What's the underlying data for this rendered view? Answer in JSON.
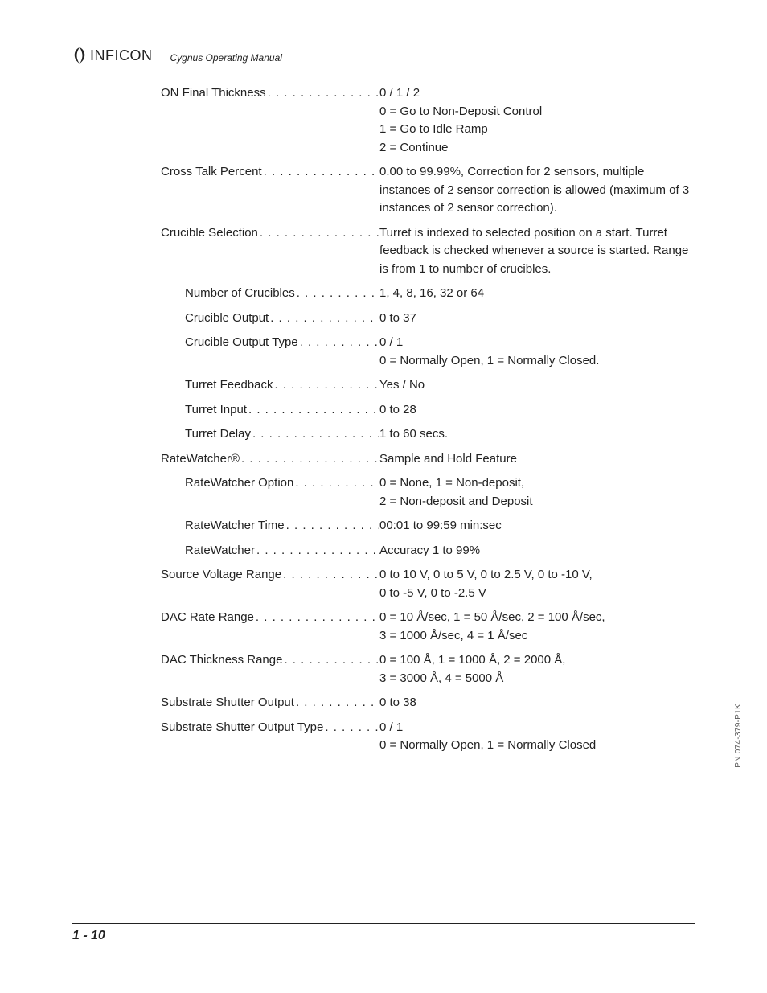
{
  "header": {
    "brand": "INFICON",
    "manual_title": "Cygnus Operating Manual"
  },
  "side_note": "IPN 074-379-P1K",
  "page_number": "1 - 10",
  "entries": [
    {
      "indent": 0,
      "label": "ON Final Thickness",
      "value_lines": [
        "0 / 1 / 2",
        "0 = Go to Non-Deposit Control",
        "1 = Go to Idle Ramp",
        "2 = Continue"
      ]
    },
    {
      "indent": 0,
      "label": "Cross Talk Percent",
      "value_lines": [
        "0.00 to 99.99%, Correction for 2 sensors, multiple instances of 2 sensor correction is allowed (maximum of 3 instances of 2 sensor correction)."
      ]
    },
    {
      "indent": 0,
      "label": "Crucible Selection",
      "value_lines": [
        "Turret is indexed to selected position on a start. Turret feedback is checked whenever a source is started. Range is from 1 to number of crucibles."
      ]
    },
    {
      "indent": 1,
      "label": "Number of Crucibles",
      "value_lines": [
        "1, 4, 8, 16, 32 or 64"
      ]
    },
    {
      "indent": 1,
      "label": "Crucible Output",
      "value_lines": [
        "0 to 37"
      ]
    },
    {
      "indent": 1,
      "label": "Crucible Output Type",
      "value_lines": [
        "0 / 1",
        "0 = Normally Open, 1 = Normally Closed."
      ]
    },
    {
      "indent": 1,
      "label": "Turret Feedback",
      "value_lines": [
        "Yes / No"
      ]
    },
    {
      "indent": 1,
      "label": "Turret Input",
      "value_lines": [
        "0 to 28"
      ]
    },
    {
      "indent": 1,
      "label": "Turret Delay",
      "value_lines": [
        "1 to 60 secs."
      ]
    },
    {
      "indent": 0,
      "label": "RateWatcher®",
      "value_lines": [
        "Sample and Hold Feature"
      ]
    },
    {
      "indent": 1,
      "label": "RateWatcher Option",
      "value_lines": [
        "0 = None, 1 = Non-deposit,",
        "2 = Non-deposit and Deposit"
      ]
    },
    {
      "indent": 1,
      "label": "RateWatcher Time",
      "value_lines": [
        "00:01 to 99:59 min:sec"
      ]
    },
    {
      "indent": 1,
      "label": "RateWatcher",
      "value_lines": [
        "Accuracy 1 to 99%"
      ]
    },
    {
      "indent": 0,
      "label": "Source Voltage Range",
      "value_lines": [
        "0 to 10 V, 0 to 5 V, 0 to 2.5 V, 0 to -10 V,",
        "0 to -5 V, 0 to -2.5 V"
      ]
    },
    {
      "indent": 0,
      "label": "DAC Rate Range",
      "value_lines": [
        "0 = 10 Å/sec, 1 = 50 Å/sec, 2 = 100 Å/sec,",
        "3 = 1000 Å/sec, 4 = 1 Å/sec"
      ]
    },
    {
      "indent": 0,
      "label": "DAC Thickness Range",
      "value_lines": [
        "0 = 100 Å, 1 = 1000 Å, 2 = 2000 Å,",
        "3 = 3000 Å, 4 = 5000 Å"
      ]
    },
    {
      "indent": 0,
      "label": "Substrate Shutter Output",
      "value_lines": [
        "0 to 38"
      ]
    },
    {
      "indent": 0,
      "label": "Substrate Shutter Output Type",
      "value_lines": [
        "0 / 1",
        "0 = Normally Open, 1 = Normally Closed"
      ]
    }
  ]
}
